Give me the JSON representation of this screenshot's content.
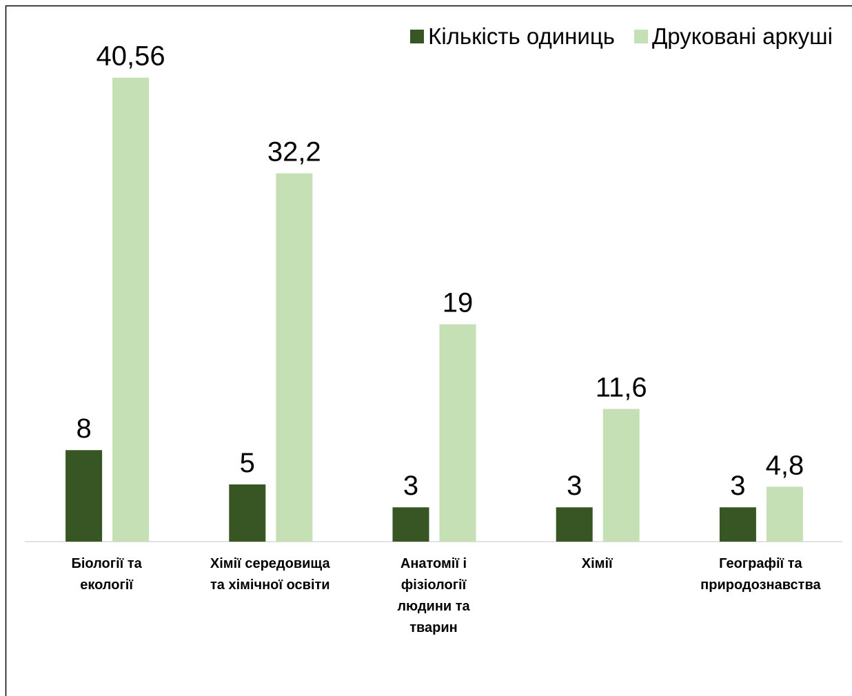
{
  "chart_data": {
    "type": "bar",
    "categories": [
      "Біології та\nекології",
      "Хімії середовища\nта хімічної освіти",
      "Анатомії і\nфізіології\nлюдини та\nтварин",
      "Хімії",
      "Географії та\nприродознавства"
    ],
    "series": [
      {
        "name": "Кількість одиниць",
        "color": "#375623",
        "values": [
          8,
          5,
          3,
          3,
          3
        ]
      },
      {
        "name": "Друковані аркуші",
        "color": "#c5e0b4",
        "values": [
          40.56,
          32.2,
          19,
          11.6,
          4.8
        ],
        "value_labels": [
          "40,56",
          "32,2",
          "19",
          "11,6",
          "4,8"
        ]
      }
    ],
    "ylim": [
      0,
      45
    ],
    "legend": "top-right"
  }
}
